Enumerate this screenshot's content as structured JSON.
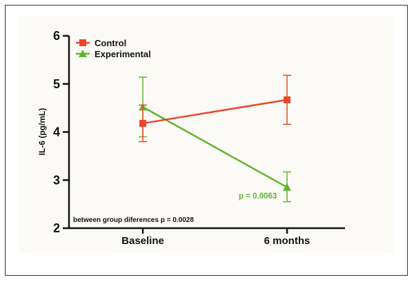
{
  "chart_data": {
    "type": "line",
    "title": "",
    "xlabel": "",
    "ylabel": "IL-6 (pg/mL)",
    "categories": [
      "Baseline",
      "6 months"
    ],
    "ylim": [
      2,
      6
    ],
    "yticks": [
      "2",
      "3",
      "4",
      "5",
      "6"
    ],
    "series": [
      {
        "name": "Control",
        "color": "#e8472a",
        "marker": "square",
        "values": [
          4.18,
          4.67
        ],
        "err_low": [
          3.8,
          4.16
        ],
        "err_high": [
          4.56,
          5.18
        ]
      },
      {
        "name": "Experimental",
        "color": "#62b42f",
        "marker": "triangle",
        "values": [
          4.52,
          2.85
        ],
        "err_low": [
          3.9,
          2.55
        ],
        "err_high": [
          5.14,
          3.17
        ]
      }
    ],
    "legend_position": "top-left",
    "grid": false,
    "annotations": {
      "between_group": "between group diferences p = 0.0028",
      "experimental_p": "p = 0.0063"
    }
  }
}
